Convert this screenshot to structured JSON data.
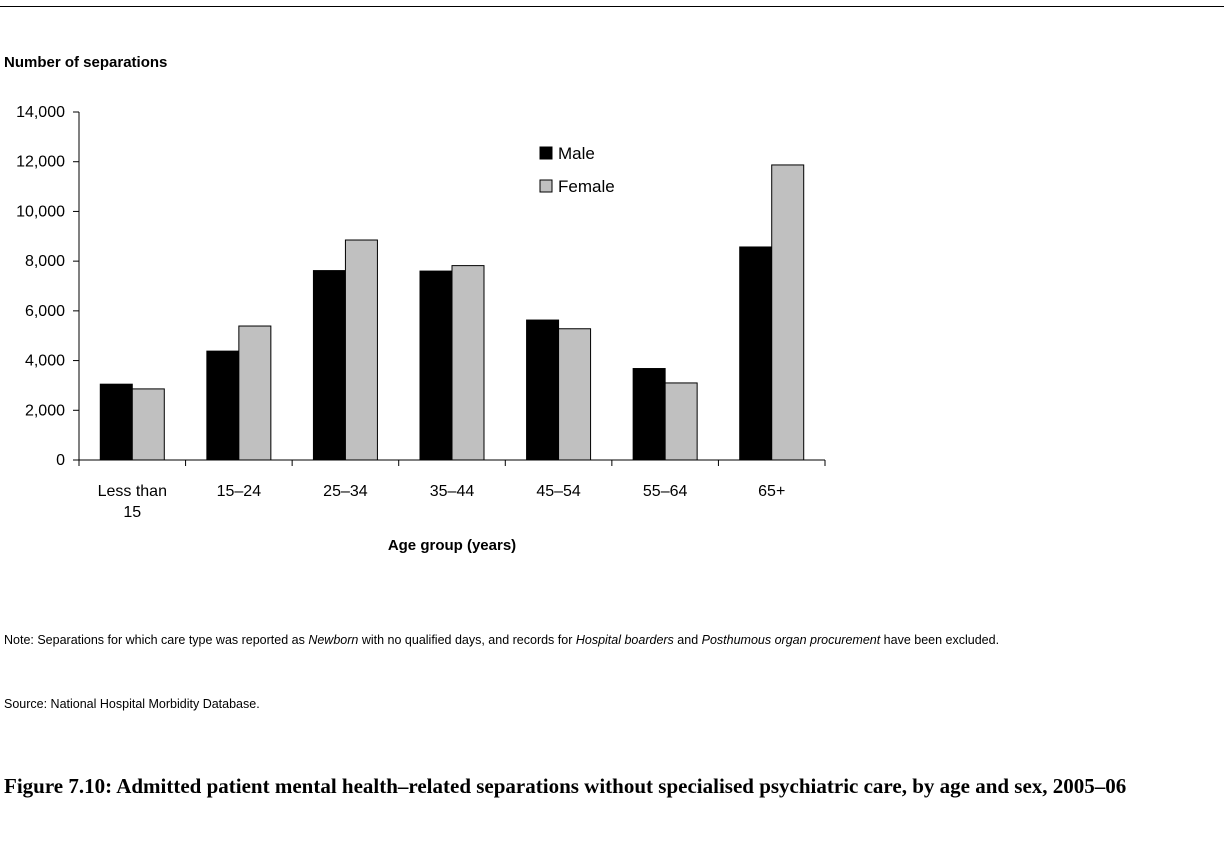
{
  "chart_data": {
    "type": "bar",
    "ylabel": "Number of separations",
    "xlabel": "Age group (years)",
    "categories": [
      "Less than 15",
      "15–24",
      "25–34",
      "35–44",
      "45–54",
      "55–64",
      "65+"
    ],
    "category_lines": [
      [
        "Less than",
        "15"
      ],
      [
        "15–24"
      ],
      [
        "25–34"
      ],
      [
        "35–44"
      ],
      [
        "45–54"
      ],
      [
        "55–64"
      ],
      [
        "65+"
      ]
    ],
    "series": [
      {
        "name": "Male",
        "color": "#000000",
        "values": [
          3050,
          4380,
          7620,
          7600,
          5630,
          3680,
          8570
        ]
      },
      {
        "name": "Female",
        "color": "#c0c0c0",
        "values": [
          2860,
          5390,
          8850,
          7820,
          5280,
          3100,
          11870
        ]
      }
    ],
    "ylim": [
      0,
      14000
    ],
    "yticks": [
      0,
      2000,
      4000,
      6000,
      8000,
      10000,
      12000,
      14000
    ],
    "ytick_labels": [
      "0",
      "2,000",
      "4,000",
      "6,000",
      "8,000",
      "10,000",
      "12,000",
      "14,000"
    ],
    "grid": false,
    "legend_position": "top-center"
  },
  "note": {
    "prefix": "Note: Separations for which care type was reported as ",
    "newborn": "Newborn",
    "mid1": " with no qualified days, and records for ",
    "hospital_boarders": "Hospital boarders",
    "mid2": " and ",
    "posthumous": "Posthumous organ procurement",
    "suffix": " have been excluded."
  },
  "source": "Source: National Hospital Morbidity Database.",
  "caption": "Figure 7.10: Admitted patient mental health–related separations without specialised psychiatric care, by age and sex, 2005–06"
}
